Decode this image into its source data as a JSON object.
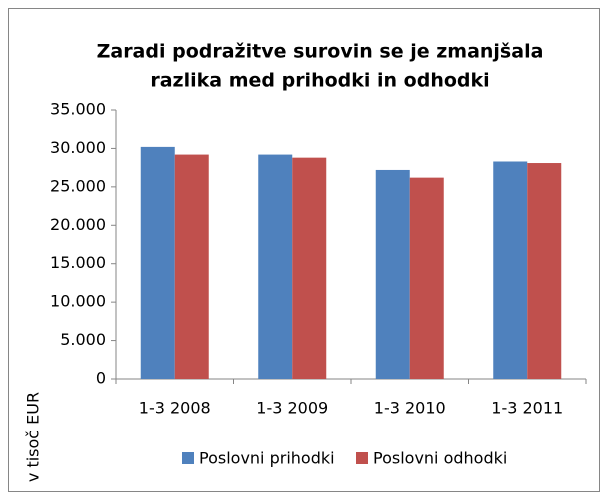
{
  "chart_data": {
    "type": "bar",
    "title": [
      "Zaradi podražitve surovin se je zmanjšala",
      "razlika med prihodki in odhodki"
    ],
    "y_label": "v tisoč EUR",
    "categories": [
      "1-3 2008",
      "1-3 2009",
      "1-3 2010",
      "1-3 2011"
    ],
    "series": [
      {
        "name": "Poslovni prihodki",
        "color": "#4f81bd",
        "values": [
          30200,
          29200,
          27200,
          28300
        ]
      },
      {
        "name": "Poslovni odhodki",
        "color": "#c0504d",
        "values": [
          29200,
          28800,
          26200,
          28100
        ]
      }
    ],
    "ylim": [
      0,
      35000
    ],
    "yticks": [
      0,
      {
        "value": 5000,
        "label": "5.000"
      },
      {
        "value": 10000,
        "label": "10.000"
      },
      {
        "value": 15000,
        "label": "15.000"
      },
      {
        "value": 20000,
        "label": "20.000"
      },
      {
        "value": 25000,
        "label": "25.000"
      },
      {
        "value": 30000,
        "label": "30.000"
      },
      {
        "value": 35000,
        "label": "35.000"
      }
    ],
    "grid": false,
    "legend": "bottom"
  }
}
